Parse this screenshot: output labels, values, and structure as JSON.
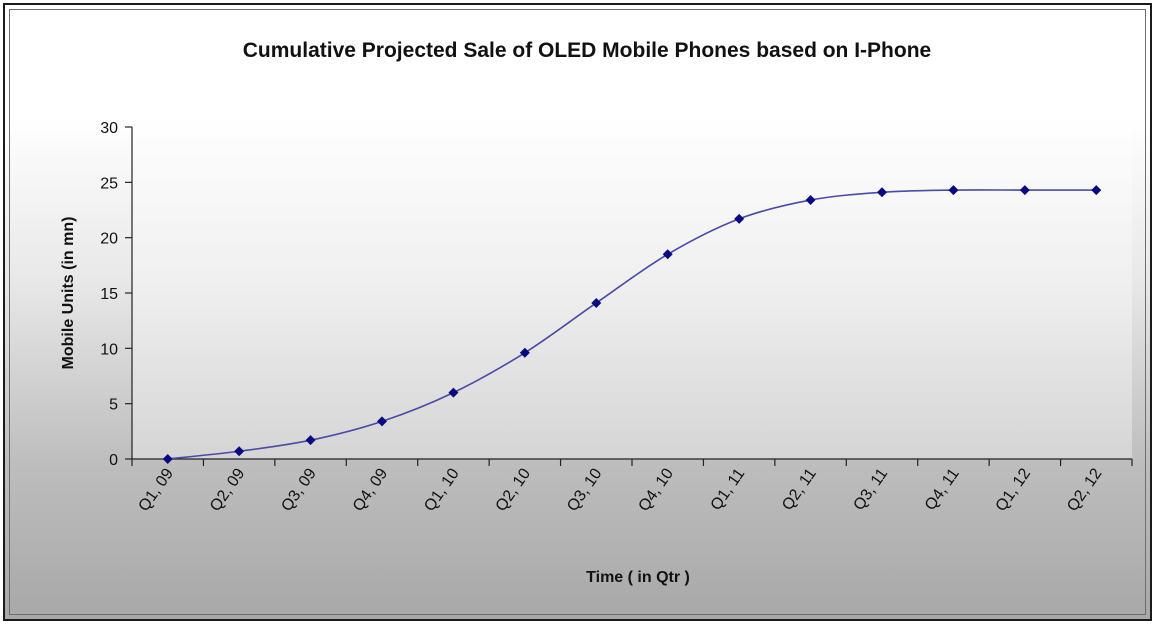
{
  "chart_data": {
    "type": "line",
    "title": "Cumulative Projected Sale of OLED Mobile Phones based on I-Phone",
    "xlabel": "Time ( in Qtr )",
    "ylabel": "Mobile Units (in mn)",
    "categories": [
      "Q1, 09",
      "Q2, 09",
      "Q3, 09",
      "Q4, 09",
      "Q1, 10",
      "Q2, 10",
      "Q3, 10",
      "Q4, 10",
      "Q1, 11",
      "Q2, 11",
      "Q3, 11",
      "Q4, 11",
      "Q1, 12",
      "Q2, 12"
    ],
    "series": [
      {
        "values": [
          0,
          0.7,
          1.7,
          3.4,
          6.0,
          9.6,
          14.1,
          18.5,
          21.7,
          23.4,
          24.1,
          24.3,
          24.3,
          24.3
        ]
      }
    ],
    "ylim": [
      0,
      30
    ],
    "yticks": [
      0,
      5,
      10,
      15,
      20,
      25,
      30
    ],
    "grid": false,
    "legend": "none",
    "colors": {
      "line": "#4a4aa8",
      "marker": "#0a0a80",
      "axis": "#222222"
    }
  }
}
